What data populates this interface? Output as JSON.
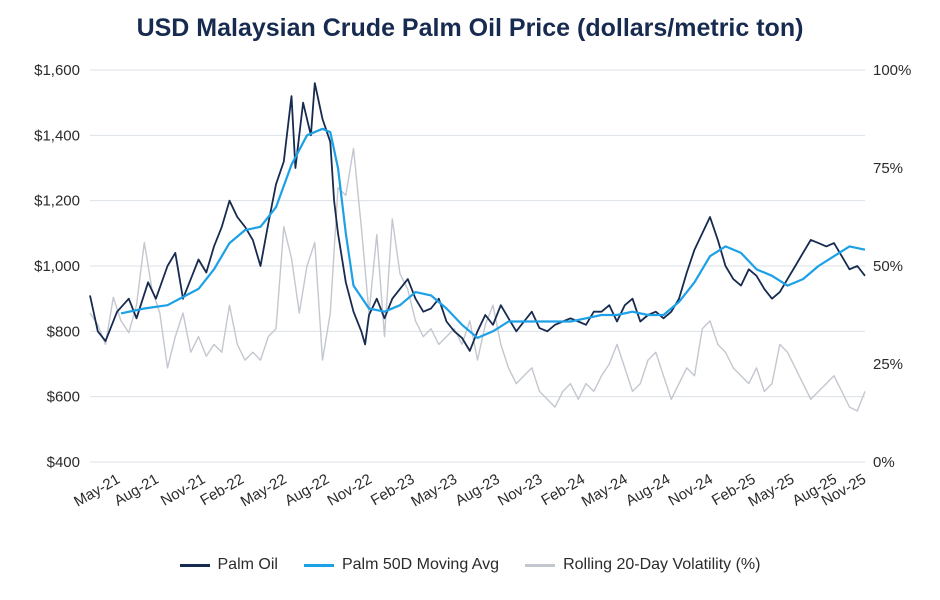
{
  "chart_data": {
    "type": "line",
    "title": "USD Malaysian Crude Palm Oil Price (dollars/metric ton)",
    "xlabel": "",
    "ylabel": "",
    "y_left": {
      "min": 400,
      "max": 1600,
      "ticks": [
        400,
        600,
        800,
        1000,
        1200,
        1400,
        1600
      ],
      "tick_labels": [
        "$400",
        "$600",
        "$800",
        "$1,000",
        "$1,200",
        "$1,400",
        "$1,600"
      ]
    },
    "y_right": {
      "min": 0,
      "max": 100,
      "ticks": [
        0,
        25,
        50,
        75,
        100
      ],
      "tick_labels": [
        "0%",
        "25%",
        "50%",
        "75%",
        "100%"
      ]
    },
    "x_ticks": [
      {
        "label": "May-21",
        "t": 0.04
      },
      {
        "label": "Aug-21",
        "t": 0.09
      },
      {
        "label": "Nov-21",
        "t": 0.15
      },
      {
        "label": "Feb-22",
        "t": 0.2
      },
      {
        "label": "May-22",
        "t": 0.255
      },
      {
        "label": "Aug-22",
        "t": 0.31
      },
      {
        "label": "Nov-22",
        "t": 0.365
      },
      {
        "label": "Feb-23",
        "t": 0.42
      },
      {
        "label": "May-23",
        "t": 0.475
      },
      {
        "label": "Aug-23",
        "t": 0.53
      },
      {
        "label": "Nov-23",
        "t": 0.585
      },
      {
        "label": "Feb-24",
        "t": 0.64
      },
      {
        "label": "May-24",
        "t": 0.695
      },
      {
        "label": "Aug-24",
        "t": 0.75
      },
      {
        "label": "Nov-24",
        "t": 0.805
      },
      {
        "label": "Feb-25",
        "t": 0.86
      },
      {
        "label": "May-25",
        "t": 0.91
      },
      {
        "label": "Aug-25",
        "t": 0.965
      },
      {
        "label": "Nov-25",
        "t": 1.02
      }
    ],
    "series": [
      {
        "name": "Palm Oil",
        "color": "#172a4f",
        "axis": "left",
        "points": [
          [
            0.0,
            910
          ],
          [
            0.01,
            800
          ],
          [
            0.02,
            770
          ],
          [
            0.035,
            860
          ],
          [
            0.05,
            900
          ],
          [
            0.06,
            840
          ],
          [
            0.075,
            950
          ],
          [
            0.085,
            900
          ],
          [
            0.1,
            1000
          ],
          [
            0.11,
            1040
          ],
          [
            0.12,
            900
          ],
          [
            0.13,
            960
          ],
          [
            0.14,
            1020
          ],
          [
            0.15,
            980
          ],
          [
            0.16,
            1060
          ],
          [
            0.17,
            1120
          ],
          [
            0.18,
            1200
          ],
          [
            0.19,
            1150
          ],
          [
            0.2,
            1120
          ],
          [
            0.21,
            1080
          ],
          [
            0.22,
            1000
          ],
          [
            0.23,
            1130
          ],
          [
            0.24,
            1250
          ],
          [
            0.25,
            1320
          ],
          [
            0.26,
            1520
          ],
          [
            0.265,
            1300
          ],
          [
            0.275,
            1500
          ],
          [
            0.285,
            1400
          ],
          [
            0.29,
            1560
          ],
          [
            0.3,
            1450
          ],
          [
            0.31,
            1380
          ],
          [
            0.315,
            1200
          ],
          [
            0.32,
            1100
          ],
          [
            0.33,
            950
          ],
          [
            0.34,
            860
          ],
          [
            0.35,
            800
          ],
          [
            0.355,
            760
          ],
          [
            0.36,
            850
          ],
          [
            0.37,
            900
          ],
          [
            0.38,
            840
          ],
          [
            0.39,
            900
          ],
          [
            0.4,
            930
          ],
          [
            0.41,
            960
          ],
          [
            0.42,
            900
          ],
          [
            0.43,
            860
          ],
          [
            0.44,
            870
          ],
          [
            0.45,
            900
          ],
          [
            0.46,
            830
          ],
          [
            0.47,
            800
          ],
          [
            0.48,
            780
          ],
          [
            0.49,
            740
          ],
          [
            0.5,
            800
          ],
          [
            0.51,
            850
          ],
          [
            0.52,
            820
          ],
          [
            0.53,
            880
          ],
          [
            0.54,
            840
          ],
          [
            0.55,
            800
          ],
          [
            0.56,
            830
          ],
          [
            0.57,
            860
          ],
          [
            0.58,
            810
          ],
          [
            0.59,
            800
          ],
          [
            0.6,
            820
          ],
          [
            0.61,
            830
          ],
          [
            0.62,
            840
          ],
          [
            0.63,
            830
          ],
          [
            0.64,
            820
          ],
          [
            0.65,
            860
          ],
          [
            0.66,
            860
          ],
          [
            0.67,
            880
          ],
          [
            0.68,
            830
          ],
          [
            0.69,
            880
          ],
          [
            0.7,
            900
          ],
          [
            0.71,
            830
          ],
          [
            0.72,
            850
          ],
          [
            0.73,
            860
          ],
          [
            0.74,
            840
          ],
          [
            0.75,
            860
          ],
          [
            0.76,
            900
          ],
          [
            0.77,
            980
          ],
          [
            0.78,
            1050
          ],
          [
            0.79,
            1100
          ],
          [
            0.8,
            1150
          ],
          [
            0.81,
            1080
          ],
          [
            0.82,
            1000
          ],
          [
            0.83,
            960
          ],
          [
            0.84,
            940
          ],
          [
            0.85,
            990
          ],
          [
            0.86,
            970
          ],
          [
            0.87,
            930
          ],
          [
            0.88,
            900
          ],
          [
            0.89,
            920
          ],
          [
            0.9,
            960
          ],
          [
            0.91,
            1000
          ],
          [
            0.92,
            1040
          ],
          [
            0.93,
            1080
          ],
          [
            0.94,
            1070
          ],
          [
            0.95,
            1060
          ],
          [
            0.96,
            1070
          ],
          [
            0.97,
            1030
          ],
          [
            0.98,
            990
          ],
          [
            0.99,
            1000
          ],
          [
            1.0,
            970
          ]
        ]
      },
      {
        "name": "Palm 50D Moving Avg",
        "color": "#1ca0e6",
        "axis": "left",
        "points": [
          [
            0.04,
            855
          ],
          [
            0.07,
            870
          ],
          [
            0.1,
            880
          ],
          [
            0.12,
            905
          ],
          [
            0.14,
            930
          ],
          [
            0.16,
            990
          ],
          [
            0.18,
            1070
          ],
          [
            0.2,
            1110
          ],
          [
            0.22,
            1120
          ],
          [
            0.24,
            1180
          ],
          [
            0.26,
            1310
          ],
          [
            0.28,
            1400
          ],
          [
            0.3,
            1420
          ],
          [
            0.31,
            1410
          ],
          [
            0.32,
            1300
          ],
          [
            0.33,
            1100
          ],
          [
            0.34,
            940
          ],
          [
            0.36,
            870
          ],
          [
            0.38,
            860
          ],
          [
            0.4,
            880
          ],
          [
            0.42,
            920
          ],
          [
            0.44,
            910
          ],
          [
            0.46,
            870
          ],
          [
            0.48,
            820
          ],
          [
            0.5,
            780
          ],
          [
            0.52,
            800
          ],
          [
            0.54,
            830
          ],
          [
            0.56,
            830
          ],
          [
            0.58,
            830
          ],
          [
            0.6,
            830
          ],
          [
            0.62,
            830
          ],
          [
            0.64,
            840
          ],
          [
            0.66,
            850
          ],
          [
            0.68,
            850
          ],
          [
            0.7,
            860
          ],
          [
            0.72,
            850
          ],
          [
            0.74,
            850
          ],
          [
            0.76,
            890
          ],
          [
            0.78,
            950
          ],
          [
            0.8,
            1030
          ],
          [
            0.82,
            1060
          ],
          [
            0.84,
            1040
          ],
          [
            0.86,
            990
          ],
          [
            0.88,
            970
          ],
          [
            0.9,
            940
          ],
          [
            0.92,
            960
          ],
          [
            0.94,
            1000
          ],
          [
            0.96,
            1030
          ],
          [
            0.98,
            1060
          ],
          [
            1.0,
            1050
          ]
        ]
      },
      {
        "name": "Rolling 20-Day Volatility (%)",
        "color": "#c3c7cf",
        "axis": "right",
        "points": [
          [
            0.0,
            38
          ],
          [
            0.01,
            35
          ],
          [
            0.02,
            30
          ],
          [
            0.03,
            42
          ],
          [
            0.04,
            36
          ],
          [
            0.05,
            33
          ],
          [
            0.06,
            40
          ],
          [
            0.07,
            56
          ],
          [
            0.08,
            44
          ],
          [
            0.09,
            38
          ],
          [
            0.1,
            24
          ],
          [
            0.11,
            32
          ],
          [
            0.12,
            38
          ],
          [
            0.13,
            28
          ],
          [
            0.14,
            32
          ],
          [
            0.15,
            27
          ],
          [
            0.16,
            30
          ],
          [
            0.17,
            28
          ],
          [
            0.18,
            40
          ],
          [
            0.19,
            30
          ],
          [
            0.2,
            26
          ],
          [
            0.21,
            28
          ],
          [
            0.22,
            26
          ],
          [
            0.23,
            32
          ],
          [
            0.24,
            34
          ],
          [
            0.25,
            60
          ],
          [
            0.26,
            52
          ],
          [
            0.27,
            38
          ],
          [
            0.28,
            50
          ],
          [
            0.29,
            56
          ],
          [
            0.3,
            26
          ],
          [
            0.31,
            38
          ],
          [
            0.32,
            70
          ],
          [
            0.33,
            68
          ],
          [
            0.34,
            80
          ],
          [
            0.35,
            60
          ],
          [
            0.36,
            38
          ],
          [
            0.37,
            58
          ],
          [
            0.38,
            32
          ],
          [
            0.39,
            62
          ],
          [
            0.4,
            48
          ],
          [
            0.41,
            44
          ],
          [
            0.42,
            36
          ],
          [
            0.43,
            32
          ],
          [
            0.44,
            34
          ],
          [
            0.45,
            30
          ],
          [
            0.46,
            32
          ],
          [
            0.47,
            34
          ],
          [
            0.48,
            30
          ],
          [
            0.49,
            36
          ],
          [
            0.5,
            26
          ],
          [
            0.51,
            35
          ],
          [
            0.52,
            40
          ],
          [
            0.53,
            30
          ],
          [
            0.54,
            24
          ],
          [
            0.55,
            20
          ],
          [
            0.56,
            22
          ],
          [
            0.57,
            24
          ],
          [
            0.58,
            18
          ],
          [
            0.59,
            16
          ],
          [
            0.6,
            14
          ],
          [
            0.61,
            18
          ],
          [
            0.62,
            20
          ],
          [
            0.63,
            16
          ],
          [
            0.64,
            20
          ],
          [
            0.65,
            18
          ],
          [
            0.66,
            22
          ],
          [
            0.67,
            25
          ],
          [
            0.68,
            30
          ],
          [
            0.69,
            24
          ],
          [
            0.7,
            18
          ],
          [
            0.71,
            20
          ],
          [
            0.72,
            26
          ],
          [
            0.73,
            28
          ],
          [
            0.74,
            22
          ],
          [
            0.75,
            16
          ],
          [
            0.76,
            20
          ],
          [
            0.77,
            24
          ],
          [
            0.78,
            22
          ],
          [
            0.79,
            34
          ],
          [
            0.8,
            36
          ],
          [
            0.81,
            30
          ],
          [
            0.82,
            28
          ],
          [
            0.83,
            24
          ],
          [
            0.84,
            22
          ],
          [
            0.85,
            20
          ],
          [
            0.86,
            24
          ],
          [
            0.87,
            18
          ],
          [
            0.88,
            20
          ],
          [
            0.89,
            30
          ],
          [
            0.9,
            28
          ],
          [
            0.91,
            24
          ],
          [
            0.92,
            20
          ],
          [
            0.93,
            16
          ],
          [
            0.94,
            18
          ],
          [
            0.95,
            20
          ],
          [
            0.96,
            22
          ],
          [
            0.97,
            18
          ],
          [
            0.98,
            14
          ],
          [
            0.99,
            13
          ],
          [
            1.0,
            18
          ]
        ]
      }
    ]
  },
  "legend": {
    "item1": "Palm Oil",
    "item2": "Palm 50D Moving Avg",
    "item3": "Rolling 20-Day Volatility (%)"
  }
}
